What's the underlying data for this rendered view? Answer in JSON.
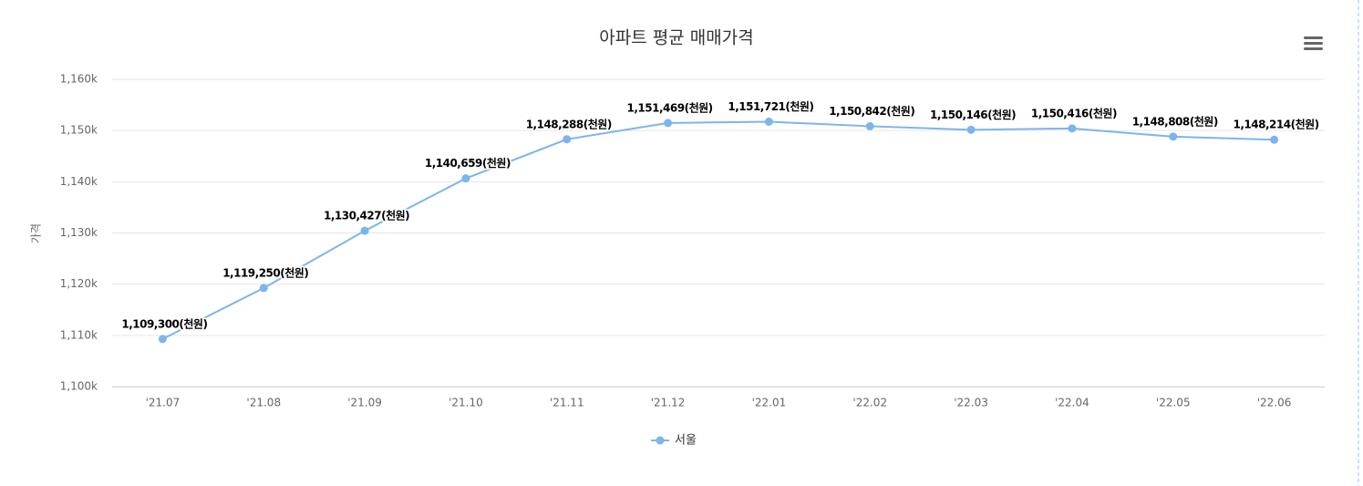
{
  "chart_data": {
    "type": "line",
    "title": "아파트 평균 매매가격",
    "y_label": "가격",
    "categories": [
      "'21.07",
      "'21.08",
      "'21.09",
      "'21.10",
      "'21.11",
      "'21.12",
      "'22.01",
      "'22.02",
      "'22.03",
      "'22.04",
      "'22.05",
      "'22.06"
    ],
    "series": [
      {
        "name": "서울",
        "color": "#7cb5ec",
        "values": [
          1109300,
          1119250,
          1130427,
          1140659,
          1148288,
          1151469,
          1151721,
          1150842,
          1150146,
          1150416,
          1148808,
          1148214
        ],
        "value_labels": [
          "1,109,300(천원)",
          "1,119,250(천원)",
          "1,130,427(천원)",
          "1,140,659(천원)",
          "1,148,288(천원)",
          "1,151,469(천원)",
          "1,151,721(천원)",
          "1,150,842(천원)",
          "1,150,146(천원)",
          "1,150,416(천원)",
          "1,148,808(천원)",
          "1,148,214(천원)"
        ]
      }
    ],
    "ylim": [
      1100000,
      1160000
    ],
    "yticks": [
      {
        "value": 1100000,
        "label": "1,100k"
      },
      {
        "value": 1110000,
        "label": "1,110k"
      },
      {
        "value": 1120000,
        "label": "1,120k"
      },
      {
        "value": 1130000,
        "label": "1,130k"
      },
      {
        "value": 1140000,
        "label": "1,140k"
      },
      {
        "value": 1150000,
        "label": "1,150k"
      },
      {
        "value": 1160000,
        "label": "1,160k"
      }
    ],
    "grid": true
  }
}
